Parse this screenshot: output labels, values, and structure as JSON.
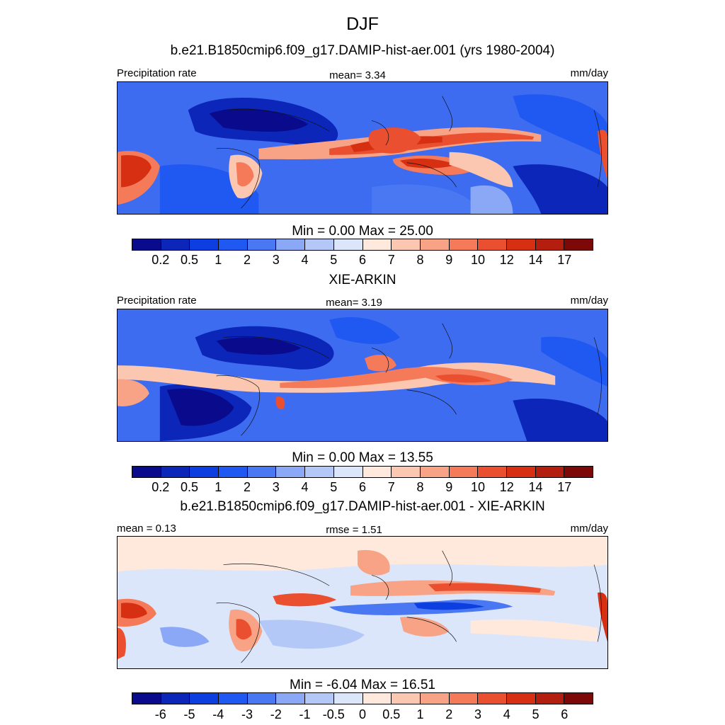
{
  "title": "DJF",
  "colormap_seq": [
    "#0a0a8c",
    "#0b26b8",
    "#0d3ee0",
    "#2058f2",
    "#4a78f2",
    "#8aa8f5",
    "#b4c8f8",
    "#dce6fb",
    "#fee9dc",
    "#fbc7b0",
    "#f8a286",
    "#f47a5a",
    "#ea4f2f",
    "#d72f12",
    "#b31e0e",
    "#7d0808"
  ],
  "colormap_div": [
    "#0a0a8c",
    "#0b26b8",
    "#0d3ee0",
    "#2058f2",
    "#4a78f2",
    "#8aa8f5",
    "#b4c8f8",
    "#dce6fb",
    "#fee9dc",
    "#fbc7b0",
    "#f8a286",
    "#f47a5a",
    "#ea4f2f",
    "#d72f12",
    "#b31e0e",
    "#7d0808"
  ],
  "panels": [
    {
      "title": "b.e21.B1850cmip6.f09_g17.DAMIP-hist-aer.001 (yrs 1980-2004)",
      "left_label": "Precipitation rate",
      "center_label": "mean=   3.34",
      "units": "mm/day",
      "minmax": "Min =   0.00 Max =  25.00",
      "ticks": [
        "0.2",
        "0.5",
        "1",
        "2",
        "3",
        "4",
        "5",
        "6",
        "7",
        "8",
        "9",
        "10",
        "12",
        "14",
        "17"
      ]
    },
    {
      "title": "XIE-ARKIN",
      "left_label": "Precipitation rate",
      "center_label": "mean=   3.19",
      "units": "mm/day",
      "minmax": "Min =   0.00 Max =  13.55",
      "ticks": [
        "0.2",
        "0.5",
        "1",
        "2",
        "3",
        "4",
        "5",
        "6",
        "7",
        "8",
        "9",
        "10",
        "12",
        "14",
        "17"
      ]
    },
    {
      "title": "b.e21.B1850cmip6.f09_g17.DAMIP-hist-aer.001 - XIE-ARKIN",
      "left_label": "mean =   0.13",
      "center_label": "rmse =   1.51",
      "units": "mm/day",
      "minmax": "Min =  -6.04 Max =  16.51",
      "ticks": [
        "-6",
        "-5",
        "-4",
        "-3",
        "-2",
        "-1",
        "-0.5",
        "0",
        "0.5",
        "1",
        "2",
        "3",
        "4",
        "5",
        "6"
      ]
    }
  ],
  "chart_data": [
    {
      "type": "heatmap",
      "title": "b.e21.B1850cmip6.f09_g17.DAMIP-hist-aer.001 (yrs 1980-2004)",
      "variable": "Precipitation rate",
      "units": "mm/day",
      "mean": 3.34,
      "min": 0.0,
      "max": 25.0,
      "contour_levels": [
        0.2,
        0.5,
        1,
        2,
        3,
        4,
        5,
        6,
        7,
        8,
        9,
        10,
        12,
        14,
        17
      ]
    },
    {
      "type": "heatmap",
      "title": "XIE-ARKIN",
      "variable": "Precipitation rate",
      "units": "mm/day",
      "mean": 3.19,
      "min": 0.0,
      "max": 13.55,
      "contour_levels": [
        0.2,
        0.5,
        1,
        2,
        3,
        4,
        5,
        6,
        7,
        8,
        9,
        10,
        12,
        14,
        17
      ]
    },
    {
      "type": "heatmap",
      "title": "b.e21.B1850cmip6.f09_g17.DAMIP-hist-aer.001 - XIE-ARKIN",
      "units": "mm/day",
      "mean": 0.13,
      "rmse": 1.51,
      "min": -6.04,
      "max": 16.51,
      "contour_levels": [
        -6,
        -5,
        -4,
        -3,
        -2,
        -1,
        -0.5,
        0,
        0.5,
        1,
        2,
        3,
        4,
        5,
        6
      ]
    }
  ]
}
